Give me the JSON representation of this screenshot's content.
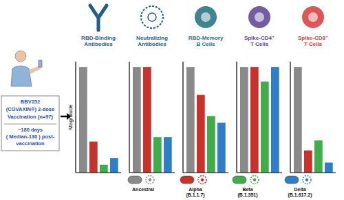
{
  "chart_data": [
    {
      "type": "bar",
      "title": "RBD-Binding Antibodies",
      "ylabel": "Magnitude",
      "categories": [
        null,
        null,
        null,
        null
      ],
      "values": [
        95,
        28,
        7,
        13
      ],
      "colors": [
        "#8a8a8a",
        "#c8322b",
        "#3fae49",
        "#2e7fc8"
      ],
      "ylim": [
        0,
        100
      ],
      "yticks": [],
      "tick_labels": false
    },
    {
      "type": "bar",
      "title": "Neutralizing Antibodies",
      "categories": [
        null,
        null,
        null,
        null
      ],
      "values": [
        95,
        95,
        32,
        32
      ],
      "colors": [
        "#8a8a8a",
        "#c8322b",
        "#3fae49",
        "#2e7fc8"
      ],
      "ylim": [
        0,
        100
      ],
      "yticks": [],
      "tick_labels": false
    },
    {
      "type": "bar",
      "title": "RBD-Memory B Cells",
      "categories": [
        null,
        null,
        null,
        null
      ],
      "values": [
        95,
        70,
        51,
        45
      ],
      "colors": [
        "#8a8a8a",
        "#c8322b",
        "#3fae49",
        "#2e7fc8"
      ],
      "ylim": [
        0,
        100
      ],
      "yticks": [],
      "tick_labels": false
    },
    {
      "type": "bar",
      "title": "Spike-CD4⁺ T Cells",
      "categories": [
        null,
        null,
        null,
        null
      ],
      "values": [
        95,
        95,
        82,
        95
      ],
      "colors": [
        "#8a8a8a",
        "#c8322b",
        "#3fae49",
        "#2e7fc8"
      ],
      "ylim": [
        0,
        100
      ],
      "yticks": [],
      "tick_labels": false
    },
    {
      "type": "bar",
      "title": "Spike-CD8⁺ T Cells",
      "categories": [
        null,
        null,
        null,
        null
      ],
      "values": [
        95,
        20,
        29,
        9
      ],
      "colors": [
        "#8a8a8a",
        "#c8322b",
        "#3fae49",
        "#2e7fc8"
      ],
      "ylim": [
        0,
        100
      ],
      "yticks": [],
      "tick_labels": false
    }
  ],
  "vaccination": {
    "lines": [
      "BBV152",
      "(COVAXIN®) 2-dose",
      "Vaccination (n=97)"
    ]
  },
  "timepoint": {
    "lines": [
      "~180 days",
      "( Median-130 ) post-",
      "vaccination"
    ]
  },
  "variant_legend": [
    {
      "label": "Ancestral",
      "color": "#8a8a8a"
    },
    {
      "label": "Alpha (B.1.1.7)",
      "color": "#c8322b"
    },
    {
      "label": "Beta (B.1.351)",
      "color": "#3fae49"
    },
    {
      "label": "Delta (B.1.617.2)",
      "color": "#2e7fc8"
    }
  ]
}
